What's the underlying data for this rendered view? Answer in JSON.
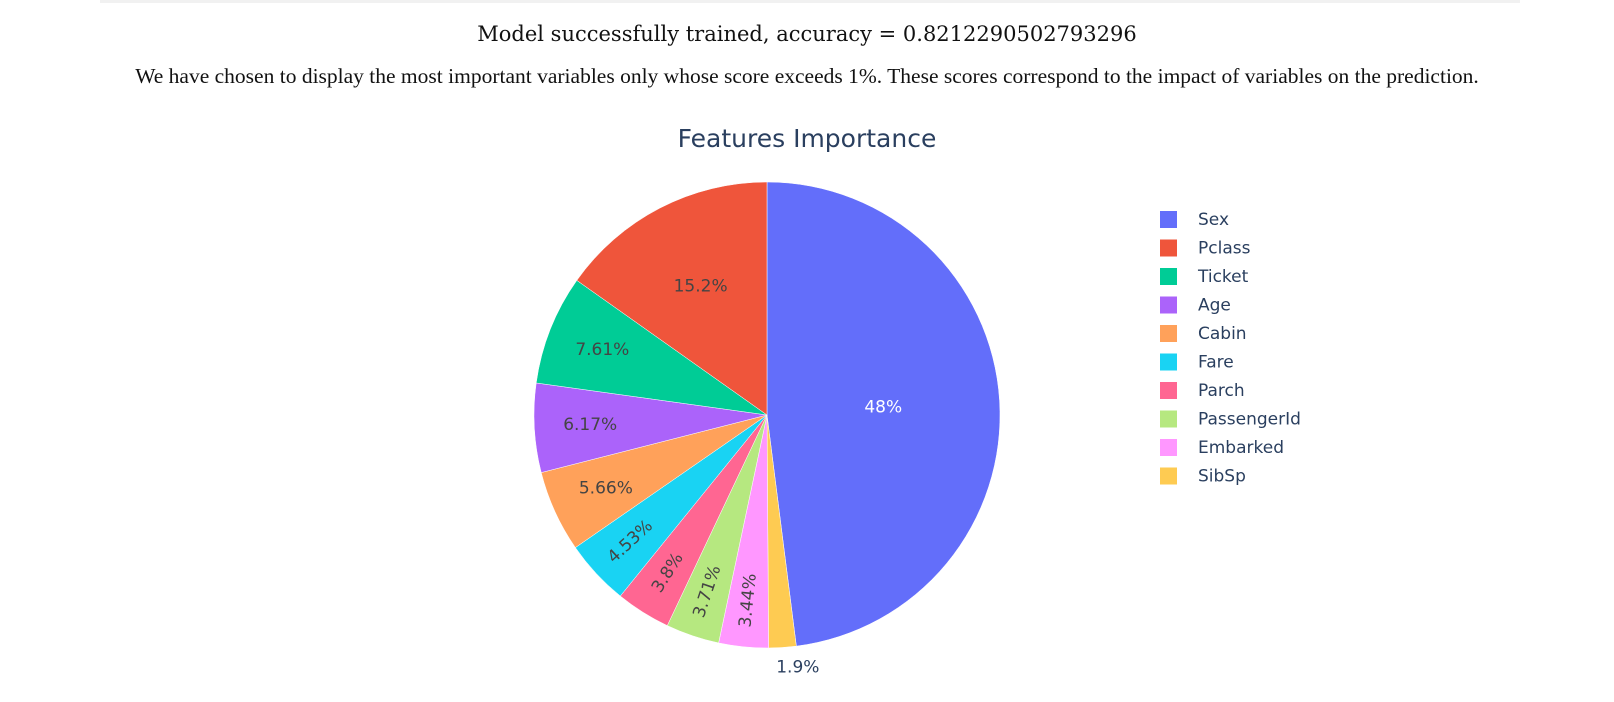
{
  "header": {
    "status": "Model successfully trained, accuracy = 0.8212290502793296",
    "note": "We have chosen to display the most important variables only whose score exceeds 1%. These scores correspond to the impact of variables on the prediction."
  },
  "chart_data": {
    "type": "pie",
    "title": "Features Importance",
    "legend_position": "right",
    "direction": "clockwise",
    "slices": [
      {
        "label": "Sex",
        "value": 48,
        "text": "48%",
        "color": "#636efa",
        "text_color": "#ffffff"
      },
      {
        "label": "SibSp",
        "value": 1.9,
        "text": "1.9%",
        "color": "#fecb52",
        "text_color": "#2a3f5f"
      },
      {
        "label": "Embarked",
        "value": 3.44,
        "text": "3.44%",
        "color": "#ff97ff",
        "text_color": "#444444"
      },
      {
        "label": "PassengerId",
        "value": 3.71,
        "text": "3.71%",
        "color": "#b6e880",
        "text_color": "#444444"
      },
      {
        "label": "Parch",
        "value": 3.8,
        "text": "3.8%",
        "color": "#ff6692",
        "text_color": "#444444"
      },
      {
        "label": "Fare",
        "value": 4.53,
        "text": "4.53%",
        "color": "#19d3f3",
        "text_color": "#444444"
      },
      {
        "label": "Cabin",
        "value": 5.66,
        "text": "5.66%",
        "color": "#ffa15a",
        "text_color": "#444444"
      },
      {
        "label": "Age",
        "value": 6.17,
        "text": "6.17%",
        "color": "#ab63fa",
        "text_color": "#444444"
      },
      {
        "label": "Ticket",
        "value": 7.61,
        "text": "7.61%",
        "color": "#00cc96",
        "text_color": "#444444"
      },
      {
        "label": "Pclass",
        "value": 15.2,
        "text": "15.2%",
        "color": "#ef553b",
        "text_color": "#444444"
      }
    ],
    "legend": [
      "Sex",
      "Pclass",
      "Ticket",
      "Age",
      "Cabin",
      "Fare",
      "Parch",
      "PassengerId",
      "Embarked",
      "SibSp"
    ]
  }
}
